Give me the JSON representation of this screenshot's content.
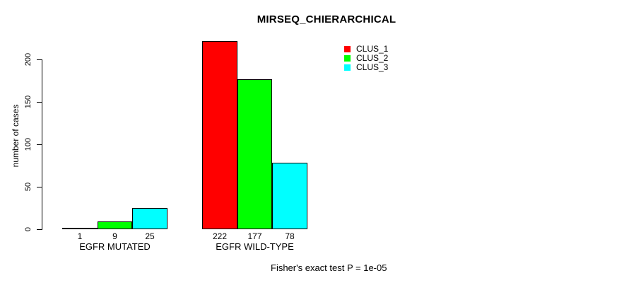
{
  "title": "MIRSEQ_CHIERARCHICAL",
  "footer": "Fisher's exact test P = 1e-05",
  "chart_data": {
    "type": "bar",
    "title": "MIRSEQ_CHIERARCHICAL",
    "categories": [
      "EGFR MUTATED",
      "EGFR WILD-TYPE"
    ],
    "series": [
      {
        "name": "CLUS_1",
        "color": "#ff0000",
        "values": [
          1,
          222
        ]
      },
      {
        "name": "CLUS_2",
        "color": "#00ff00",
        "values": [
          9,
          177
        ]
      },
      {
        "name": "CLUS_3",
        "color": "#00ffff",
        "values": [
          25,
          78
        ]
      }
    ],
    "xlabel": "",
    "ylabel": "number of cases",
    "yticks": [
      0,
      50,
      100,
      150,
      200
    ],
    "ylim": [
      0,
      235
    ],
    "bar_value_labels": [
      [
        "1",
        "9",
        "25"
      ],
      [
        "222",
        "177",
        "78"
      ]
    ],
    "grid": false,
    "legend": {
      "position": "top-right",
      "entries": [
        "CLUS_1",
        "CLUS_2",
        "CLUS_3"
      ],
      "colors": [
        "#ff0000",
        "#00ff00",
        "#00ffff"
      ]
    },
    "annotation": "Fisher's exact test P = 1e-05",
    "background": "#ffffff",
    "text_color": "#000000"
  }
}
